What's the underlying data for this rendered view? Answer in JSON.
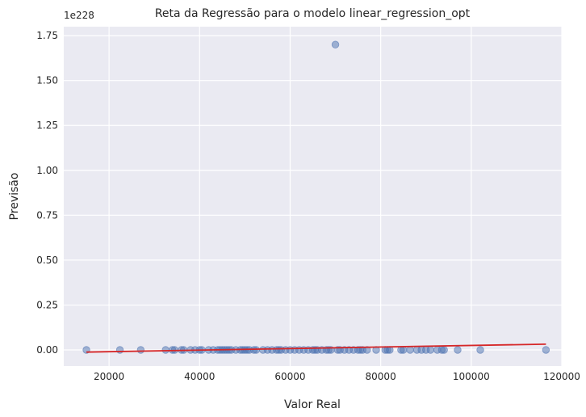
{
  "chart_data": {
    "type": "scatter",
    "title": "Reta da Regressão para o modelo linear_regression_opt",
    "xlabel": "Valor Real",
    "ylabel": "Previsão",
    "y_offset_label": "1e228",
    "xlim": [
      10000,
      120000
    ],
    "ylim": [
      -0.09,
      1.8
    ],
    "x_ticks": [
      20000,
      40000,
      60000,
      80000,
      100000,
      120000
    ],
    "x_tick_labels": [
      "20000",
      "40000",
      "60000",
      "80000",
      "100000",
      "120000"
    ],
    "y_ticks": [
      0.0,
      0.25,
      0.5,
      0.75,
      1.0,
      1.25,
      1.5,
      1.75
    ],
    "y_tick_labels": [
      "0.00",
      "0.25",
      "0.50",
      "0.75",
      "1.00",
      "1.25",
      "1.50",
      "1.75"
    ],
    "grid": true,
    "background": "#eaeaf2",
    "series": [
      {
        "kind": "points",
        "color": "#4c72b0",
        "x": [
          15000,
          22400,
          27000,
          32500,
          34000,
          34500,
          36000,
          36500,
          38000,
          39000,
          40000,
          40500,
          42000,
          43000,
          44000,
          44500,
          45000,
          45500,
          46000,
          46500,
          47000,
          48000,
          49000,
          49500,
          50000,
          50500,
          51000,
          52000,
          52500,
          54000,
          55000,
          56000,
          57000,
          57500,
          58000,
          59000,
          60000,
          61000,
          62000,
          63000,
          64000,
          65000,
          65500,
          66000,
          67000,
          68000,
          68500,
          69000,
          70500,
          71000,
          72000,
          73000,
          74000,
          75000,
          75500,
          76000,
          77000,
          79000,
          81000,
          81500,
          82000,
          84500,
          85000,
          86500,
          88000,
          89000,
          90000,
          91000,
          92500,
          93500,
          94000,
          97000,
          102000,
          116500
        ],
        "y": [
          0.0,
          0.0,
          0.0,
          0.0,
          0.0,
          0.0,
          0.0,
          0.0,
          0.0,
          0.0,
          0.0,
          0.0,
          0.0,
          0.0,
          0.0,
          0.0,
          0.0,
          0.0,
          0.0,
          0.0,
          0.0,
          0.0,
          0.0,
          0.0,
          0.0,
          0.0,
          0.0,
          0.0,
          0.0,
          0.0,
          0.0,
          0.0,
          0.0,
          0.0,
          0.0,
          0.0,
          0.0,
          0.0,
          0.0,
          0.0,
          0.0,
          0.0,
          0.0,
          0.0,
          0.0,
          0.0,
          0.0,
          0.0,
          0.0,
          0.0,
          0.0,
          0.0,
          0.0,
          0.0,
          0.0,
          0.0,
          0.0,
          0.0,
          0.0,
          0.0,
          0.0,
          0.0,
          0.0,
          0.0,
          0.0,
          0.0,
          0.0,
          0.0,
          0.0,
          0.0,
          0.0,
          0.0,
          0.0,
          0.0
        ]
      },
      {
        "kind": "outlier",
        "color": "#4c72b0",
        "x": [
          70000
        ],
        "y": [
          1.7
        ]
      },
      {
        "kind": "line",
        "color": "#d62728",
        "x": [
          15000,
          116500
        ],
        "y": [
          -0.012,
          0.032
        ]
      }
    ]
  }
}
